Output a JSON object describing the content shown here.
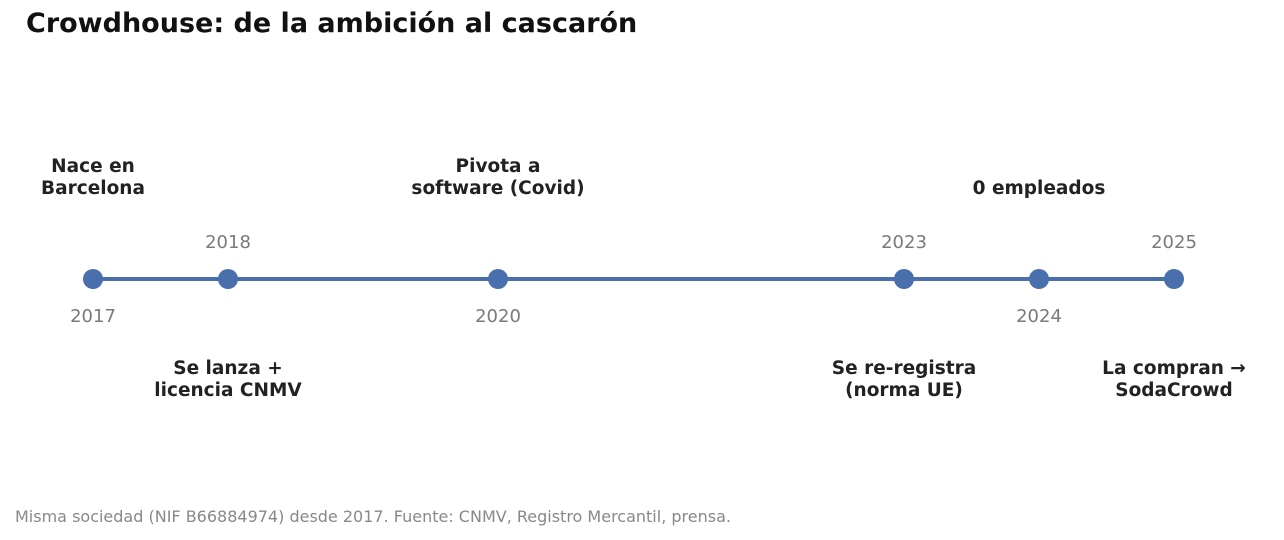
{
  "title": "Crowdhouse: de la ambición al cascarón",
  "accent_color": "#4a6fad",
  "events": [
    {
      "year": "2017",
      "line1": "Nace en",
      "line2": "Barcelona"
    },
    {
      "year": "2018",
      "line1": "Se lanza +",
      "line2": "licencia CNMV"
    },
    {
      "year": "2020",
      "line1": "Pivota a",
      "line2": "software (Covid)"
    },
    {
      "year": "2023",
      "line1": "Se re-registra",
      "line2": "(norma UE)"
    },
    {
      "year": "2024",
      "line1": "0 empleados",
      "line2": ""
    },
    {
      "year": "2025",
      "line1": "La compran →",
      "line2": "SodaCrowd"
    }
  ],
  "footnote": "Misma sociedad (NIF B66884974) desde 2017. Fuente: CNMV, Registro Mercantil, prensa."
}
